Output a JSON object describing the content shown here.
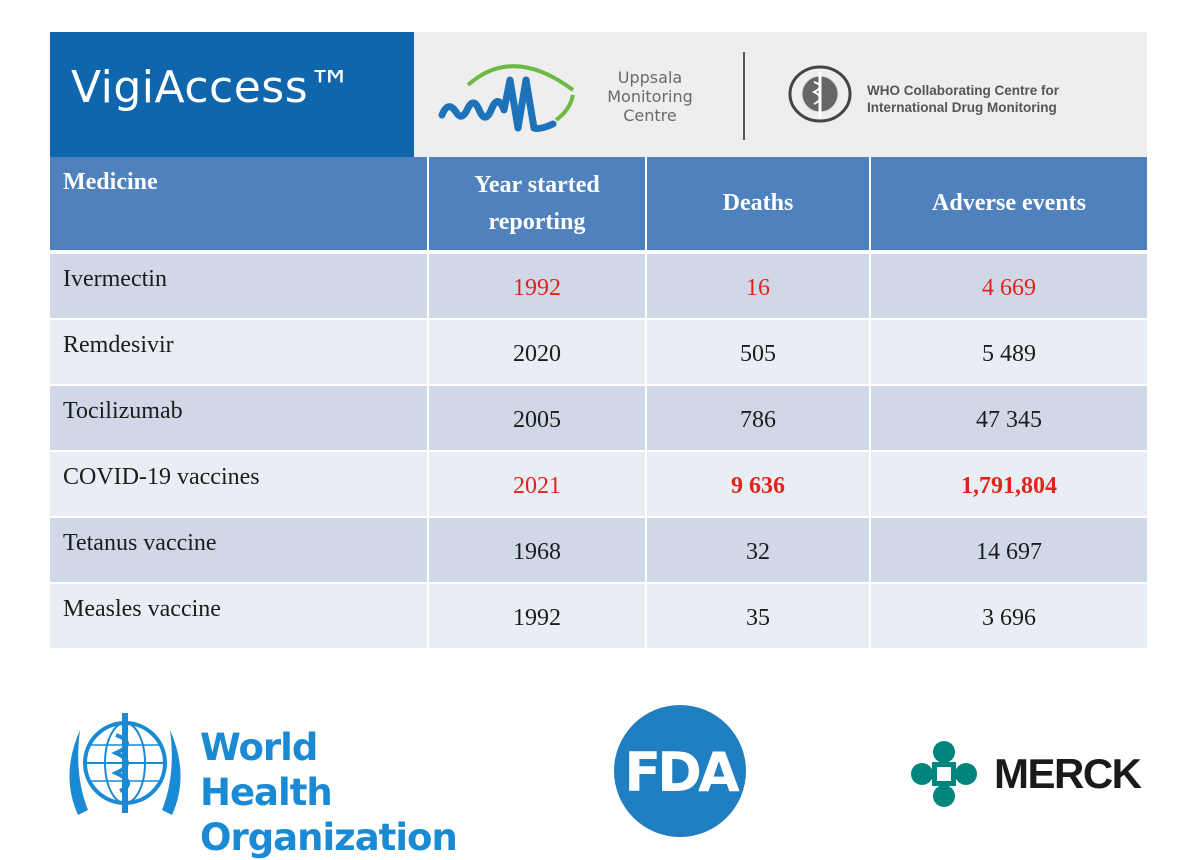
{
  "header": {
    "brand": "VigiAccess™",
    "umc_lines": [
      "Uppsala",
      "Monitoring",
      "Centre"
    ],
    "who_collab_lines": [
      "WHO Collaborating Centre for",
      "International Drug Monitoring"
    ]
  },
  "table": {
    "columns": [
      "Medicine",
      "Year started reporting",
      "Deaths",
      "Adverse events"
    ],
    "column_lines": {
      "year": [
        "Year started",
        "reporting"
      ]
    },
    "rows": [
      {
        "medicine": "Ivermectin",
        "year": "1992",
        "deaths": "16",
        "adverse": "4 669"
      },
      {
        "medicine": "Remdesivir",
        "year": "2020",
        "deaths": "505",
        "adverse": "5 489"
      },
      {
        "medicine": "Tocilizumab",
        "year": "2005",
        "deaths": "786",
        "adverse": "47 345"
      },
      {
        "medicine": "COVID-19 vaccines",
        "year": "2021",
        "deaths": "9 636",
        "adverse": "1,791,804"
      },
      {
        "medicine": "Tetanus vaccine",
        "year": "1968",
        "deaths": "32",
        "adverse": "14 697"
      },
      {
        "medicine": "Measles vaccine",
        "year": "1992",
        "deaths": "35",
        "adverse": "3 696"
      }
    ]
  },
  "logos": {
    "who_name_lines": [
      "World Health",
      "Organization"
    ],
    "fda": "FDA",
    "merck": "MERCK"
  },
  "colors": {
    "header_blue": "#4f81bd",
    "brand_blue": "#0f66ad",
    "highlight_red": "#e2231a",
    "row_dark": "#d0d8e8",
    "row_light": "#e9edf4"
  }
}
